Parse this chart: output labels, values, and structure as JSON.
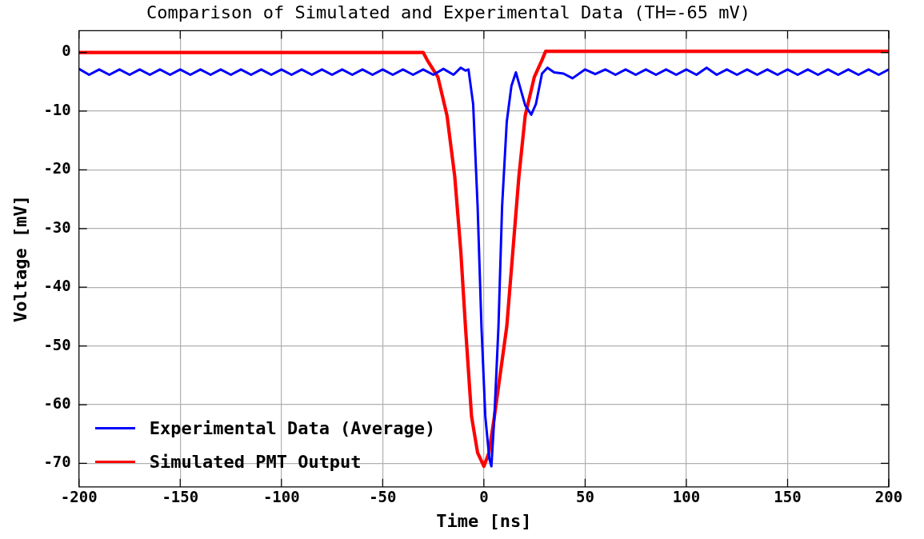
{
  "chart_data": {
    "type": "line",
    "title": "Comparison of Simulated and Experimental Data (TH=-65 mV)",
    "xlabel": "Time [ns]",
    "ylabel": "Voltage [mV]",
    "xlim": [
      -200,
      200
    ],
    "xticks": [
      -200,
      -150,
      -100,
      -50,
      0,
      50,
      100,
      150,
      200
    ],
    "ylim": [
      -74,
      3.7
    ],
    "yticks": [
      -70,
      -60,
      -50,
      -40,
      -30,
      -20,
      -10,
      0
    ],
    "grid": true,
    "legend": "bottom left",
    "series": [
      {
        "name": "Experimental Data (Average)",
        "color": "#0000ff",
        "x": [
          -200,
          -195,
          -190,
          -185,
          -180,
          -175,
          -170,
          -165,
          -160,
          -155,
          -150,
          -145,
          -140,
          -135,
          -130,
          -125,
          -120,
          -115,
          -110,
          -105,
          -100,
          -95,
          -90,
          -85,
          -80,
          -75,
          -70,
          -65,
          -60,
          -55,
          -50,
          -45,
          -40,
          -35,
          -30,
          -25,
          -20,
          -15,
          -11.4,
          -9.1,
          -7.6,
          -5.3,
          -3.1,
          -1.2,
          0.7,
          2.7,
          3.7,
          5.2,
          7.2,
          9,
          11.3,
          13.6,
          15.8,
          18.1,
          20.4,
          23.4,
          25.7,
          28.7,
          31.4,
          34.7,
          39.3,
          43.8,
          50,
          55,
          60,
          65,
          70,
          75,
          80,
          85,
          90,
          95,
          100,
          105,
          110,
          115,
          120,
          125,
          130,
          135,
          140,
          145,
          150,
          155,
          160,
          165,
          170,
          175,
          180,
          185,
          190,
          195,
          200
        ],
        "values": [
          -2.8,
          -3.8,
          -2.9,
          -3.8,
          -2.9,
          -3.8,
          -2.9,
          -3.8,
          -2.9,
          -3.8,
          -2.9,
          -3.8,
          -2.9,
          -3.8,
          -2.9,
          -3.8,
          -2.9,
          -3.8,
          -2.9,
          -3.8,
          -2.9,
          -3.8,
          -2.9,
          -3.8,
          -2.9,
          -3.8,
          -2.9,
          -3.8,
          -2.9,
          -3.8,
          -2.9,
          -3.8,
          -2.9,
          -3.8,
          -2.9,
          -3.8,
          -2.8,
          -3.8,
          -2.6,
          -3.1,
          -2.9,
          -8.8,
          -26.2,
          -46.7,
          -62,
          -69.2,
          -70.5,
          -62,
          -46.7,
          -26.2,
          -11.8,
          -5.7,
          -3.4,
          -6.2,
          -9,
          -10.6,
          -8.8,
          -3.6,
          -2.6,
          -3.4,
          -3.6,
          -4.4,
          -2.9,
          -3.7,
          -2.9,
          -3.8,
          -2.9,
          -3.8,
          -2.9,
          -3.8,
          -2.9,
          -3.8,
          -2.9,
          -3.8,
          -2.6,
          -3.8,
          -2.9,
          -3.8,
          -2.9,
          -3.8,
          -2.9,
          -3.8,
          -2.9,
          -3.8,
          -2.9,
          -3.8,
          -2.9,
          -3.8,
          -2.9,
          -3.8,
          -2.9,
          -3.8,
          -2.9
        ]
      },
      {
        "name": "Simulated PMT Output",
        "color": "#ff0000",
        "x": [
          -200,
          -30,
          -28,
          -22.7,
          -18.2,
          -14.4,
          -11.4,
          -9.1,
          -6.1,
          -3.1,
          0,
          2.5,
          5.2,
          11.3,
          14.3,
          17.3,
          20.4,
          24.9,
          28.7,
          30.5,
          200
        ],
        "values": [
          0,
          0,
          -1.3,
          -4.2,
          -10.8,
          -21.1,
          -33.9,
          -46.7,
          -62,
          -68.2,
          -70.5,
          -68.2,
          -62,
          -46.7,
          -33.9,
          -21.1,
          -10.8,
          -4.2,
          -1.3,
          0.2,
          0.2
        ]
      }
    ]
  }
}
